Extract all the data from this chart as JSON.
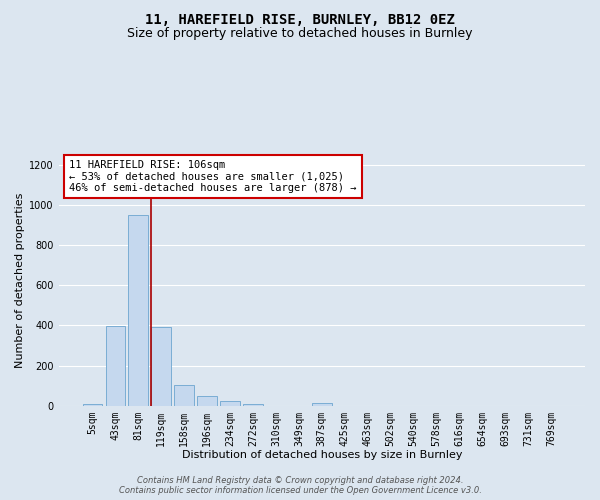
{
  "title": "11, HAREFIELD RISE, BURNLEY, BB12 0EZ",
  "subtitle": "Size of property relative to detached houses in Burnley",
  "xlabel": "Distribution of detached houses by size in Burnley",
  "ylabel": "Number of detached properties",
  "categories": [
    "5sqm",
    "43sqm",
    "81sqm",
    "119sqm",
    "158sqm",
    "196sqm",
    "234sqm",
    "272sqm",
    "310sqm",
    "349sqm",
    "387sqm",
    "425sqm",
    "463sqm",
    "502sqm",
    "540sqm",
    "578sqm",
    "616sqm",
    "654sqm",
    "693sqm",
    "731sqm",
    "769sqm"
  ],
  "values": [
    10,
    395,
    950,
    390,
    105,
    50,
    22,
    10,
    0,
    0,
    15,
    0,
    0,
    0,
    0,
    0,
    0,
    0,
    0,
    0,
    0
  ],
  "bar_color": "#c5d8ee",
  "bar_edge_color": "#7aadd4",
  "vline_x": 2.57,
  "vline_color": "#aa0000",
  "annotation_text_line1": "11 HAREFIELD RISE: 106sqm",
  "annotation_text_line2": "← 53% of detached houses are smaller (1,025)",
  "annotation_text_line3": "46% of semi-detached houses are larger (878) →",
  "annotation_box_color": "#ffffff",
  "annotation_box_edge_color": "#cc0000",
  "ylim": [
    0,
    1250
  ],
  "yticks": [
    0,
    200,
    400,
    600,
    800,
    1000,
    1200
  ],
  "footer_line1": "Contains HM Land Registry data © Crown copyright and database right 2024.",
  "footer_line2": "Contains public sector information licensed under the Open Government Licence v3.0.",
  "background_color": "#dce6f0",
  "plot_bg_color": "#dce6f0",
  "grid_color": "#ffffff",
  "title_fontsize": 10,
  "subtitle_fontsize": 9,
  "axis_label_fontsize": 8,
  "tick_fontsize": 7,
  "annotation_fontsize": 7.5,
  "footer_fontsize": 6
}
